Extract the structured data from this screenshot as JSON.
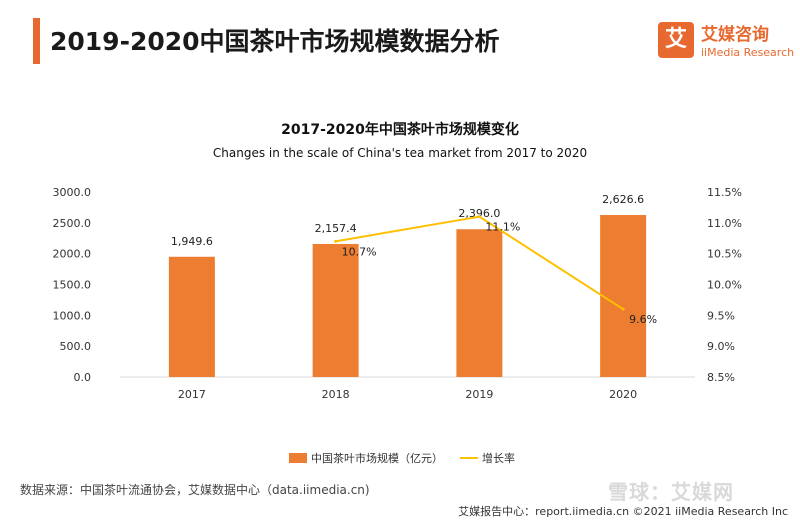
{
  "header": {
    "title": "2019-2020中国茶叶市场规模数据分析",
    "logo_cn": "艾媒咨询",
    "logo_en": "iiMedia Research",
    "logo_mark": "艾"
  },
  "colors": {
    "accent": "#e8692f",
    "bar": "#ed7d31",
    "line": "#ffc000"
  },
  "chart_data": {
    "type": "bar",
    "title": "2017-2020年中国茶叶市场规模变化",
    "subtitle": "Changes in the scale of China's tea market from 2017 to 2020",
    "categories": [
      "2017",
      "2018",
      "2019",
      "2020"
    ],
    "series": [
      {
        "name": "中国茶叶市场规模（亿元）",
        "type": "bar",
        "axis": "left",
        "values": [
          1949.6,
          2157.4,
          2396.0,
          2626.6
        ],
        "labels": [
          "1,949.6",
          "2,157.4",
          "2,396.0",
          "2,626.6"
        ]
      },
      {
        "name": "增长率",
        "type": "line",
        "axis": "right",
        "values": [
          null,
          10.7,
          11.1,
          9.6
        ],
        "labels": [
          "",
          "10.7%",
          "11.1%",
          "9.6%"
        ]
      }
    ],
    "y_left": {
      "ylim": [
        0,
        3000
      ],
      "ticks": [
        "0.0",
        "500.0",
        "1000.0",
        "1500.0",
        "2000.0",
        "2500.0",
        "3000.0"
      ]
    },
    "y_right": {
      "ylim": [
        8.5,
        11.5
      ],
      "ticks": [
        "8.5%",
        "9.0%",
        "9.5%",
        "10.0%",
        "10.5%",
        "11.0%",
        "11.5%"
      ]
    },
    "grid": false,
    "legend": "bottom"
  },
  "footer": {
    "source": "数据来源：中国茶叶流通协会，艾媒数据中心（data.iimedia.cn)",
    "report": "艾媒报告中心：report.iimedia.cn  ©2021  iiMedia Research  Inc",
    "watermark": "雪球：艾媒网"
  }
}
